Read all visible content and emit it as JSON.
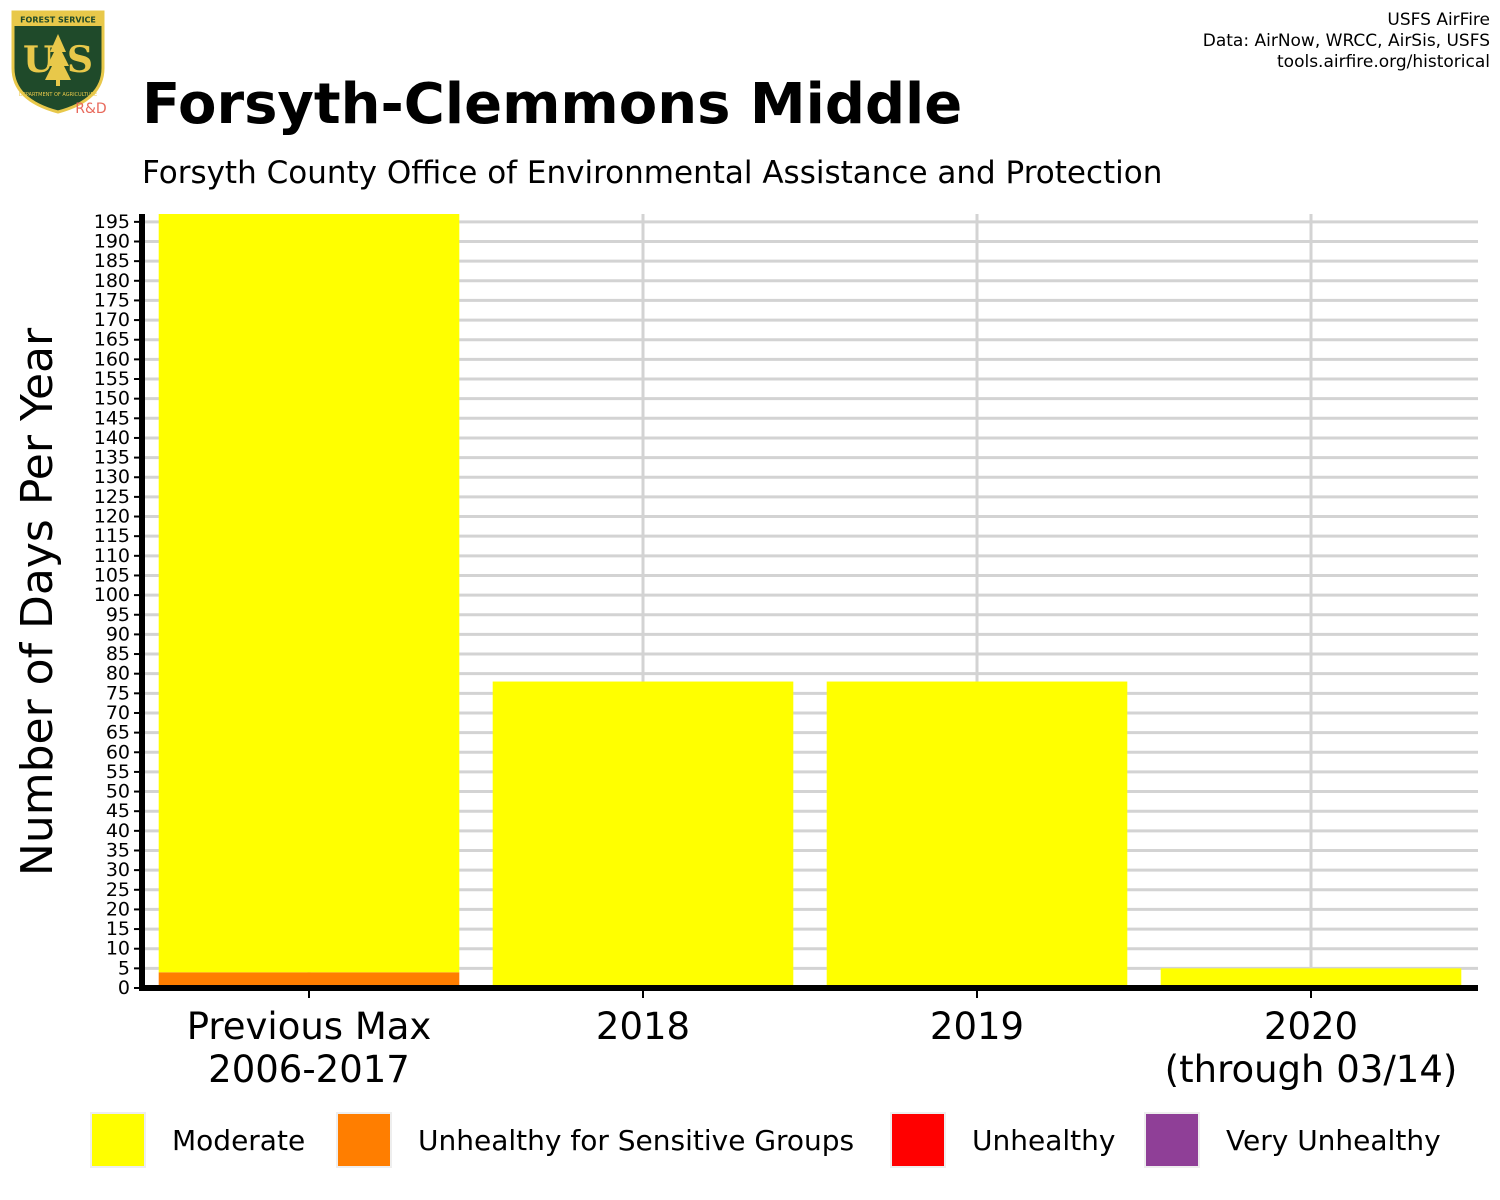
{
  "header": {
    "title": "Forsyth-Clemmons Middle",
    "subtitle": "Forsyth County Office of Environmental Assistance and Protection",
    "credits": [
      "USFS AirFire",
      "Data: AirNow, WRCC, AirSis, USFS",
      "tools.airfire.org/historical"
    ]
  },
  "logo": {
    "badge_text": "FOREST SERVICE",
    "letters": "U S",
    "dept_text": "DEPARTMENT OF AGRICULTURE",
    "rd_label": "R&D",
    "color_green": "#1f4a2a",
    "color_gold": "#e8c84a",
    "color_rd": "#e8695b"
  },
  "chart_data": {
    "type": "bar",
    "stacked": true,
    "categories": [
      [
        "Previous Max",
        "2006-2017"
      ],
      [
        "2018"
      ],
      [
        "2019"
      ],
      [
        "2020",
        "(through 03/14)"
      ]
    ],
    "series": [
      {
        "name": "Unhealthy for Sensitive Groups",
        "color": "#ff7e00",
        "values": [
          4,
          0,
          0,
          0
        ]
      },
      {
        "name": "Moderate",
        "color": "#ffff00",
        "values": [
          193,
          78,
          78,
          5
        ]
      },
      {
        "name": "Unhealthy",
        "color": "#ff0000",
        "values": [
          0,
          0,
          0,
          0
        ]
      },
      {
        "name": "Very Unhealthy",
        "color": "#8f3f97",
        "values": [
          0,
          0,
          0,
          0
        ]
      }
    ],
    "ylabel": "Number of Days Per Year",
    "xlabel": "",
    "ylim": [
      0,
      197
    ],
    "ytick_step": 5,
    "yticks_max": 195,
    "grid": true,
    "legend_position": "bottom"
  },
  "legend": [
    {
      "label": "Moderate",
      "color": "#ffff00"
    },
    {
      "label": "Unhealthy for Sensitive Groups",
      "color": "#ff7e00"
    },
    {
      "label": "Unhealthy",
      "color": "#ff0000"
    },
    {
      "label": "Very Unhealthy",
      "color": "#8f3f97"
    }
  ]
}
